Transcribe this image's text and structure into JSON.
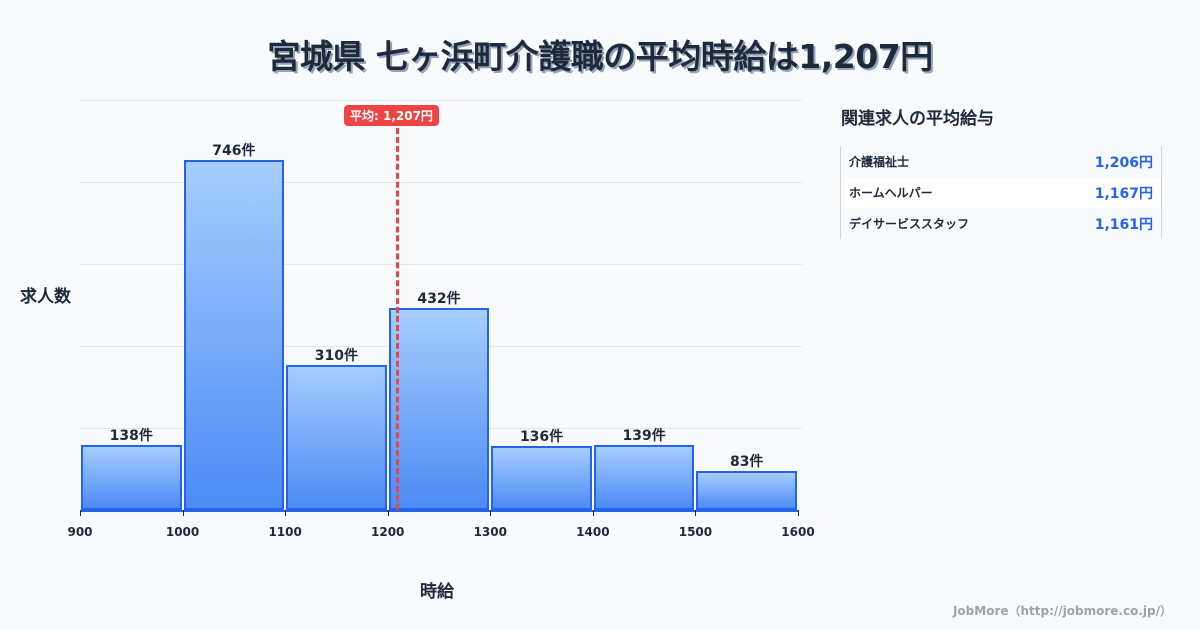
{
  "title": "宮城県 七ヶ浜町介護職の平均時給は1,207円",
  "chart_data": {
    "type": "bar",
    "title": "宮城県 七ヶ浜町介護職の平均時給は1,207円",
    "xlabel": "時給",
    "ylabel": "求人数",
    "bins": [
      [
        900,
        1000
      ],
      [
        1000,
        1100
      ],
      [
        1100,
        1200
      ],
      [
        1200,
        1300
      ],
      [
        1300,
        1400
      ],
      [
        1400,
        1500
      ],
      [
        1500,
        1600
      ]
    ],
    "categories": [
      "900-1000",
      "1000-1100",
      "1100-1200",
      "1200-1300",
      "1300-1400",
      "1400-1500",
      "1500-1600"
    ],
    "values": [
      138,
      746,
      310,
      432,
      136,
      139,
      83
    ],
    "value_labels": [
      "138件",
      "746件",
      "310件",
      "432件",
      "136件",
      "139件",
      "83件"
    ],
    "x_ticks": [
      "900",
      "1000",
      "1100",
      "1200",
      "1300",
      "1400",
      "1500",
      "1600"
    ],
    "ylim": [
      0,
      875
    ],
    "grid": true,
    "average_line": {
      "value": 1207,
      "label": "平均: 1,207円",
      "color": "#ef4444"
    },
    "bar_color": "#2563eb"
  },
  "side_panel": {
    "title": "関連求人の平均給与",
    "rows": [
      {
        "name": "介護福祉士",
        "value": "1,206円"
      },
      {
        "name": "ホームヘルパー",
        "value": "1,167円"
      },
      {
        "name": "デイサービススタッフ",
        "value": "1,161円"
      }
    ]
  },
  "footer": "JobMore（http://jobmore.co.jp/）"
}
